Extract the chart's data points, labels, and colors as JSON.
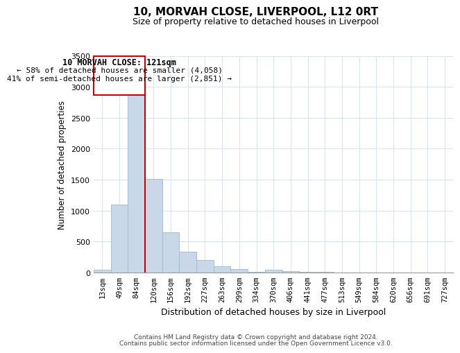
{
  "title": "10, MORVAH CLOSE, LIVERPOOL, L12 0RT",
  "subtitle": "Size of property relative to detached houses in Liverpool",
  "xlabel": "Distribution of detached houses by size in Liverpool",
  "ylabel": "Number of detached properties",
  "bar_color": "#c8d8e8",
  "bar_edge_color": "#a8bece",
  "categories": [
    "13sqm",
    "49sqm",
    "84sqm",
    "120sqm",
    "156sqm",
    "192sqm",
    "227sqm",
    "263sqm",
    "299sqm",
    "334sqm",
    "370sqm",
    "406sqm",
    "441sqm",
    "477sqm",
    "513sqm",
    "549sqm",
    "584sqm",
    "620sqm",
    "656sqm",
    "691sqm",
    "727sqm"
  ],
  "values": [
    40,
    1100,
    2920,
    1510,
    650,
    330,
    200,
    100,
    55,
    5,
    40,
    20,
    10,
    5,
    0,
    0,
    0,
    0,
    0,
    0,
    0
  ],
  "ylim": [
    0,
    3500
  ],
  "yticks": [
    0,
    500,
    1000,
    1500,
    2000,
    2500,
    3000,
    3500
  ],
  "vline_color": "#cc0000",
  "annotation_title": "10 MORVAH CLOSE: 121sqm",
  "annotation_line1": "← 58% of detached houses are smaller (4,058)",
  "annotation_line2": "41% of semi-detached houses are larger (2,851) →",
  "annotation_box_color": "#ffffff",
  "annotation_border_color": "#cc0000",
  "footnote1": "Contains HM Land Registry data © Crown copyright and database right 2024.",
  "footnote2": "Contains public sector information licensed under the Open Government Licence v3.0.",
  "background_color": "#ffffff",
  "grid_color": "#d8e4ee"
}
